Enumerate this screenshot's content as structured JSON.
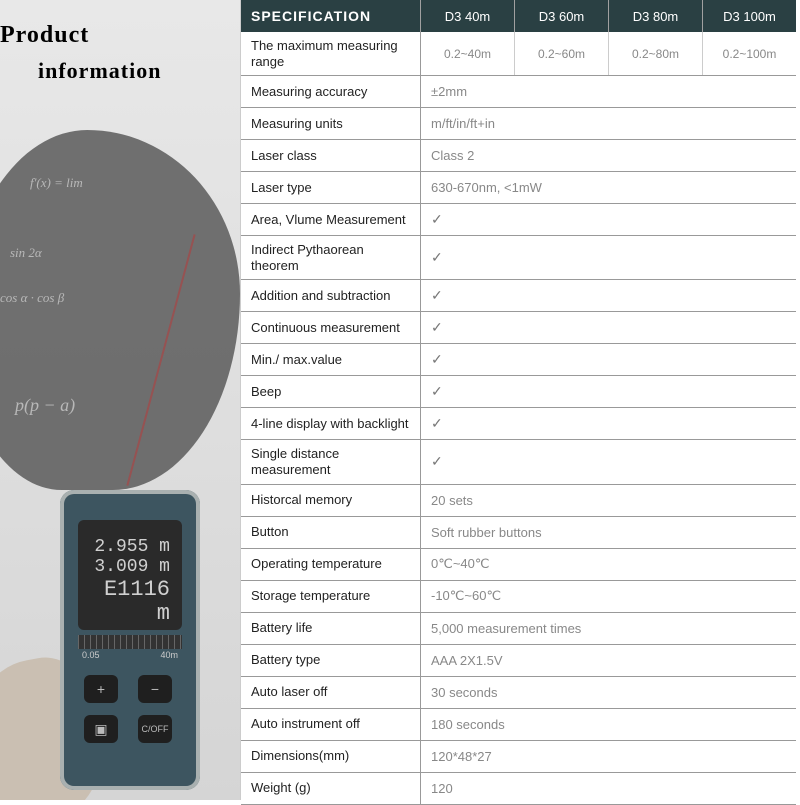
{
  "title": {
    "line1": "Product",
    "line2": "information"
  },
  "formulas": [
    "f'(x) = lim",
    "sin 2α",
    "cos α · cos β",
    "p(p − a)"
  ],
  "deviceScreen": {
    "line1": "2.955 m",
    "line2": "3.009 m",
    "line3": "E1116 m",
    "rulerLeft": "0.05",
    "rulerRight": "40m"
  },
  "header": {
    "label": "SPECIFICATION",
    "cols": [
      "D3  40m",
      "D3  60m",
      "D3  80m",
      "D3  100m"
    ]
  },
  "rangeRow": {
    "label": "The maximum measuring range",
    "vals": [
      "0.2~40m",
      "0.2~60m",
      "0.2~80m",
      "0.2~100m"
    ]
  },
  "rows": [
    {
      "label": "Measuring accuracy",
      "val": "±2mm"
    },
    {
      "label": "Measuring units",
      "val": "m/ft/in/ft+in"
    },
    {
      "label": "Laser class",
      "val": "Class  2"
    },
    {
      "label": "Laser type",
      "val": "630-670nm, <1mW"
    },
    {
      "label": "Area, Vlume Measurement",
      "val": "✓"
    },
    {
      "label": "Indirect Pythaorean theorem",
      "val": "✓"
    },
    {
      "label": "Addition and subtraction",
      "val": "✓"
    },
    {
      "label": "Continuous measurement",
      "val": "✓"
    },
    {
      "label": "Min./ max.value",
      "val": "✓"
    },
    {
      "label": "Beep",
      "val": "✓"
    },
    {
      "label": "4-line display with backlight",
      "val": "✓"
    },
    {
      "label": "Single distance measurement",
      "val": "✓"
    },
    {
      "label": "Historcal memory",
      "val": "20 sets"
    },
    {
      "label": "Button",
      "val": "Soft rubber buttons"
    },
    {
      "label": "Operating temperature",
      "val": "0℃~40℃"
    },
    {
      "label": "Storage temperature",
      "val": "-10℃~60℃"
    },
    {
      "label": "Battery life",
      "val": "5,000 measurement times"
    },
    {
      "label": "Battery type",
      "val": "AAA 2X1.5V"
    },
    {
      "label": "Auto laser off",
      "val": "30 seconds"
    },
    {
      "label": "Auto instrument off",
      "val": "180 seconds"
    },
    {
      "label": "Dimensions(mm)",
      "val": "120*48*27"
    },
    {
      "label": "Weight (g)",
      "val": "120"
    }
  ],
  "colors": {
    "headerBg": "#2a4043",
    "valueText": "#888888",
    "labelText": "#222222",
    "border": "#999999"
  }
}
